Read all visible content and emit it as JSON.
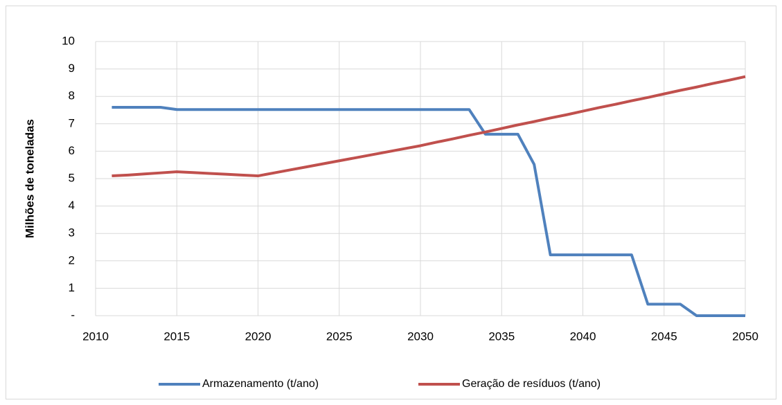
{
  "chart_data": {
    "type": "line",
    "y_label": "Milhões de toneladas",
    "x": [
      2011,
      2012,
      2013,
      2014,
      2015,
      2016,
      2017,
      2018,
      2019,
      2020,
      2021,
      2022,
      2023,
      2024,
      2025,
      2026,
      2027,
      2028,
      2029,
      2030,
      2031,
      2032,
      2033,
      2034,
      2035,
      2036,
      2037,
      2038,
      2039,
      2040,
      2041,
      2042,
      2043,
      2044,
      2045,
      2046,
      2047,
      2048,
      2049,
      2050
    ],
    "series": [
      {
        "name": "Armazenamento (t/ano)",
        "color": "#4f81bd",
        "values": [
          7.6,
          7.6,
          7.6,
          7.6,
          7.52,
          7.52,
          7.52,
          7.52,
          7.52,
          7.52,
          7.52,
          7.52,
          7.52,
          7.52,
          7.52,
          7.52,
          7.52,
          7.52,
          7.52,
          7.52,
          7.52,
          7.52,
          7.52,
          6.62,
          6.62,
          6.62,
          5.52,
          2.22,
          2.22,
          2.22,
          2.22,
          2.22,
          2.22,
          0.42,
          0.42,
          0.42,
          0,
          0,
          0,
          0
        ]
      },
      {
        "name": "Geração de resíduos (t/ano)",
        "color": "#c0504d",
        "values": [
          5.1,
          5.13,
          5.17,
          5.21,
          5.25,
          5.22,
          5.19,
          5.16,
          5.13,
          5.1,
          5.21,
          5.32,
          5.43,
          5.54,
          5.65,
          5.76,
          5.87,
          5.98,
          6.09,
          6.2,
          6.33,
          6.45,
          6.58,
          6.7,
          6.83,
          6.96,
          7.08,
          7.21,
          7.33,
          7.46,
          7.59,
          7.71,
          7.84,
          7.96,
          8.09,
          8.22,
          8.34,
          8.47,
          8.59,
          8.72
        ]
      }
    ],
    "xlim": [
      2010,
      2050
    ],
    "xticks": [
      2010,
      2015,
      2020,
      2025,
      2030,
      2035,
      2040,
      2045,
      2050
    ],
    "ylim": [
      0,
      10
    ],
    "yticks": [
      {
        "value": 0,
        "label": "-"
      },
      1,
      2,
      3,
      4,
      5,
      6,
      7,
      8,
      9,
      10
    ],
    "grid": true,
    "legend": "bottom"
  }
}
